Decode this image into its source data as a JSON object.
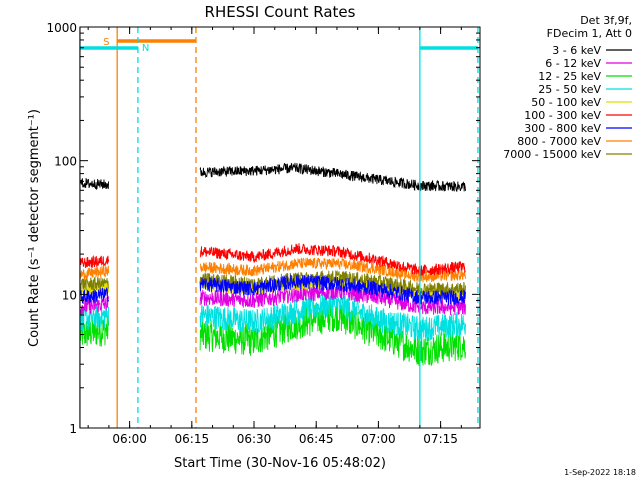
{
  "chart_data": {
    "type": "line",
    "title": "RHESSI Count Rates",
    "xlabel": "Start Time (30-Nov-16 05:48:02)",
    "ylabel": "Count Rate (s⁻¹ detector segment⁻¹)",
    "y_scale": "log",
    "ylim": [
      1,
      1000
    ],
    "xlim": [
      "05:48:02",
      "07:24:30"
    ],
    "x_ticks": [
      "06:00",
      "06:15",
      "06:30",
      "06:45",
      "07:00",
      "07:15"
    ],
    "y_ticks": [
      "1",
      "10",
      "100",
      "1000"
    ],
    "legend_header": [
      "Det 3f,9f,",
      "FDecim 1, Att 0"
    ],
    "legend_position": "right",
    "footer": "1-Sep-2022 18:18",
    "data_gap": [
      "05:55",
      "06:17"
    ],
    "series": [
      {
        "name": "3 - 6 keV",
        "color": "#000000",
        "x": [
          "05:48",
          "05:55",
          "06:17",
          "06:30",
          "06:40",
          "06:50",
          "07:00",
          "07:10",
          "07:20"
        ],
        "values": [
          68,
          66,
          82,
          84,
          88,
          80,
          72,
          65,
          64
        ]
      },
      {
        "name": "6 - 12 keV",
        "color": "#e000e0",
        "x": [
          "05:48",
          "05:55",
          "06:17",
          "06:30",
          "06:40",
          "06:50",
          "07:00",
          "07:10",
          "07:20"
        ],
        "values": [
          8,
          8.5,
          9.5,
          9,
          10,
          10.5,
          9.5,
          8,
          8
        ]
      },
      {
        "name": "12 - 25 keV",
        "color": "#00e000",
        "x": [
          "05:48",
          "05:55",
          "06:17",
          "06:30",
          "06:40",
          "06:50",
          "07:00",
          "07:10",
          "07:20"
        ],
        "values": [
          5,
          5.5,
          5,
          4.5,
          6,
          7,
          5,
          3.8,
          4.2
        ]
      },
      {
        "name": "25 - 50 keV",
        "color": "#00e0e0",
        "x": [
          "05:48",
          "05:55",
          "06:17",
          "06:30",
          "06:40",
          "06:50",
          "07:00",
          "07:10",
          "07:20"
        ],
        "values": [
          6.5,
          7,
          7,
          6.2,
          7.5,
          8.5,
          6.5,
          5.5,
          6
        ]
      },
      {
        "name": "50 - 100 keV",
        "color": "#e0e000",
        "x": [
          "05:48",
          "05:55",
          "06:17",
          "06:30",
          "06:40",
          "06:50",
          "07:00",
          "07:10",
          "07:20"
        ],
        "values": [
          11,
          11,
          12,
          11,
          12,
          12.5,
          11.5,
          10,
          10
        ]
      },
      {
        "name": "100 - 300 keV",
        "color": "#ff0000",
        "x": [
          "05:48",
          "05:55",
          "06:17",
          "06:30",
          "06:40",
          "06:50",
          "07:00",
          "07:10",
          "07:20"
        ],
        "values": [
          17,
          18,
          21,
          19,
          22,
          21,
          18,
          15,
          16
        ]
      },
      {
        "name": "300 - 800 keV",
        "color": "#0000ff",
        "x": [
          "05:48",
          "05:55",
          "06:17",
          "06:30",
          "06:40",
          "06:50",
          "07:00",
          "07:10",
          "07:20"
        ],
        "values": [
          9.5,
          10,
          12,
          11,
          12.5,
          12,
          11,
          9.5,
          9.5
        ]
      },
      {
        "name": "800 - 7000 keV",
        "color": "#ff8000",
        "x": [
          "05:48",
          "05:55",
          "06:17",
          "06:30",
          "06:40",
          "06:50",
          "07:00",
          "07:10",
          "07:20"
        ],
        "values": [
          14,
          15,
          16,
          15,
          17,
          17,
          15.5,
          13.5,
          14
        ]
      },
      {
        "name": "7000 - 15000 keV",
        "color": "#808000",
        "x": [
          "05:48",
          "05:55",
          "06:17",
          "06:30",
          "06:40",
          "06:50",
          "07:00",
          "07:10",
          "07:20"
        ],
        "values": [
          12,
          12,
          13,
          12,
          13,
          13.5,
          12.5,
          11,
          11
        ]
      }
    ],
    "annotations": [
      {
        "label": "S",
        "color": "#ff8000",
        "type": "SAA interval",
        "x_start": "05:57",
        "x_end": "06:16"
      },
      {
        "label": "N",
        "color": "#00e0e0",
        "type": "night interval",
        "x_start": "05:48",
        "x_end": "06:02"
      },
      {
        "label": "",
        "color": "#00e0e0",
        "type": "night interval",
        "x_start": "07:10",
        "x_end": "07:24"
      }
    ]
  }
}
